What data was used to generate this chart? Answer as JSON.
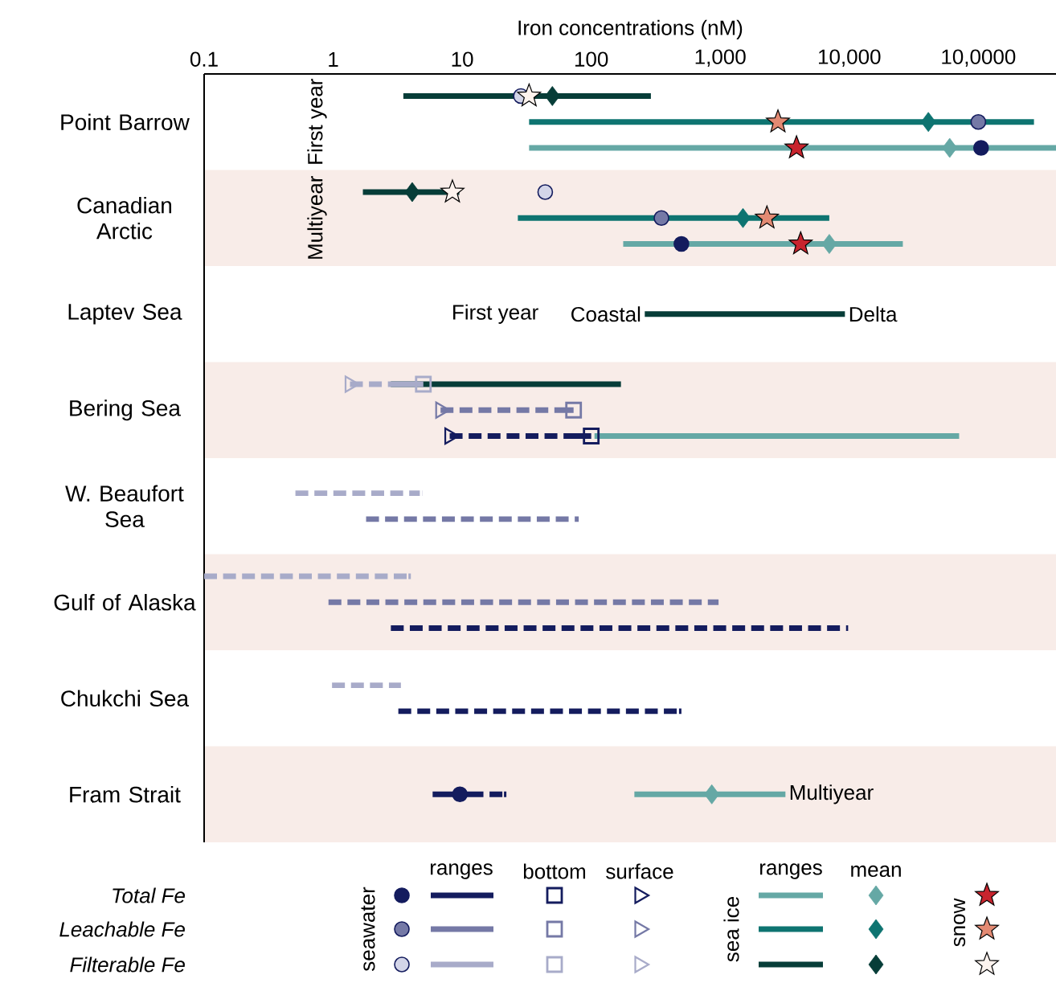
{
  "chart_data": {
    "type": "bar",
    "orientation": "horizontal",
    "log": "x",
    "xlabel": "Iron concentrations (nM)",
    "categories": [
      "Point Barrow",
      "Canadian Arctic",
      "Laptev Sea",
      "Bering Sea",
      "W. Beaufort Sea",
      "Gulf of Alaska",
      "Chukchi Sea",
      "Fram Strait"
    ],
    "xlim": [
      0.1,
      400000
    ],
    "xticks": [
      0.1,
      1,
      10,
      100,
      {
        "value": 1000,
        "label": "1,000"
      },
      {
        "value": 10000,
        "label": "10,000"
      },
      {
        "value": 100000,
        "label": "10,0000"
      }
    ],
    "series": [
      {
        "type": "bar",
        "color": "#141c5e",
        "line_style": "dashed",
        "base": [
          null,
          null,
          null,
          8.0,
          null,
          2.8,
          3.2,
          5.9
        ],
        "values": [
          null,
          null,
          null,
          92,
          null,
          9797.2,
          496.8,
          16.1
        ]
      },
      {
        "type": "bar",
        "color": "#7579a6",
        "line_style": "dashed",
        "base": [
          null,
          null,
          null,
          6.8,
          1.8,
          0.92,
          null,
          null
        ],
        "values": [
          null,
          null,
          null,
          66.2,
          78.2,
          969.08,
          null,
          null
        ]
      },
      {
        "type": "bar",
        "color": "#a8abc9",
        "line_style": "dashed",
        "base": [
          null,
          null,
          null,
          1.35,
          0.51,
          0.1,
          0.98,
          null
        ],
        "values": [
          null,
          null,
          null,
          3.65,
          4.39,
          3.9,
          2.37,
          null
        ]
      },
      {
        "type": "bar",
        "color": "#65a8a5",
        "line_style": "solid",
        "base": [
          33,
          177,
          null,
          106,
          null,
          null,
          null,
          216
        ],
        "values": [
          399967,
          25823,
          null,
          70894,
          null,
          null,
          null,
          2984
        ]
      },
      {
        "type": "bar",
        "color": "#0e7471",
        "line_style": "solid",
        "base": [
          33,
          27,
          null,
          null,
          null,
          null,
          null,
          null
        ],
        "values": [
          269967,
          6973,
          null,
          null,
          null,
          null,
          null,
          null
        ]
      },
      {
        "type": "bar",
        "color": "#073d38",
        "line_style": "solid",
        "base": [
          3.5,
          1.7,
          260,
          2.8,
          null,
          null,
          null,
          null
        ],
        "values": [
          286.5,
          7.8,
          8990,
          167.2,
          null,
          null,
          null,
          null
        ]
      },
      {
        "type": "scatter",
        "marker": "circle",
        "color": "#141c5e",
        "values": [
          105000,
          500,
          null,
          null,
          null,
          null,
          null,
          9.6
        ]
      },
      {
        "type": "scatter",
        "marker": "circle",
        "color": "#7579a6",
        "values": [
          100000,
          350,
          null,
          null,
          null,
          null,
          null,
          null
        ]
      },
      {
        "type": "scatter",
        "marker": "circle",
        "color": "#d3d5e8",
        "values": [
          28.5,
          44,
          null,
          null,
          null,
          null,
          null,
          null
        ]
      },
      {
        "type": "scatter",
        "marker": "square",
        "color": "#141c5e",
        "values": [
          null,
          null,
          null,
          100,
          null,
          null,
          null,
          null
        ]
      },
      {
        "type": "scatter",
        "marker": "square",
        "color": "#7579a6",
        "values": [
          null,
          null,
          null,
          73,
          null,
          null,
          null,
          null
        ]
      },
      {
        "type": "scatter",
        "marker": "square",
        "color": "#a8abc9",
        "values": [
          null,
          null,
          null,
          5.0,
          null,
          null,
          null,
          null
        ]
      },
      {
        "type": "scatter",
        "marker": "triangle",
        "color": "#141c5e",
        "values": [
          null,
          null,
          null,
          8.0,
          null,
          null,
          null,
          null
        ]
      },
      {
        "type": "scatter",
        "marker": "triangle",
        "color": "#7579a6",
        "values": [
          null,
          null,
          null,
          6.8,
          null,
          null,
          null,
          null
        ]
      },
      {
        "type": "scatter",
        "marker": "triangle",
        "color": "#a8abc9",
        "values": [
          null,
          null,
          null,
          1.35,
          null,
          null,
          null,
          null
        ]
      },
      {
        "type": "scatter",
        "marker": "diamond",
        "color": "#65a8a5",
        "values": [
          60000,
          7000,
          null,
          null,
          null,
          null,
          null,
          860
        ]
      },
      {
        "type": "scatter",
        "marker": "diamond",
        "color": "#0e7471",
        "values": [
          41000,
          1500,
          null,
          null,
          null,
          null,
          null,
          null
        ]
      },
      {
        "type": "scatter",
        "marker": "diamond",
        "color": "#073d38",
        "values": [
          50,
          4.1,
          null,
          null,
          null,
          null,
          null,
          null
        ]
      },
      {
        "type": "scatter",
        "marker": "star",
        "color": "#c8242e",
        "values": [
          3900,
          4200,
          null,
          null,
          null,
          null,
          null,
          null
        ]
      },
      {
        "type": "scatter",
        "marker": "star",
        "color": "#e38a73",
        "values": [
          2800,
          2300,
          null,
          null,
          null,
          null,
          null,
          null
        ]
      },
      {
        "type": "scatter",
        "marker": "star",
        "color": "#fdf3ee",
        "values": [
          33,
          8.4,
          null,
          null,
          null,
          null,
          null,
          null
        ]
      }
    ],
    "annotations": [
      "First year",
      "Multiyear",
      "First year",
      {
        "text": "Coastal",
        "x": 260,
        "y": "Laptev Sea"
      },
      {
        "text": "Delta",
        "x": 9250,
        "y": "Laptev Sea"
      },
      {
        "text": "Multiyear",
        "x": 3200,
        "y": "Fram Strait"
      },
      "Total Fe",
      "Leachable Fe",
      "Filterable Fe",
      "seawater",
      "ranges",
      "bottom",
      "surface",
      "sea ice",
      "ranges",
      "mean",
      "snow"
    ]
  }
}
